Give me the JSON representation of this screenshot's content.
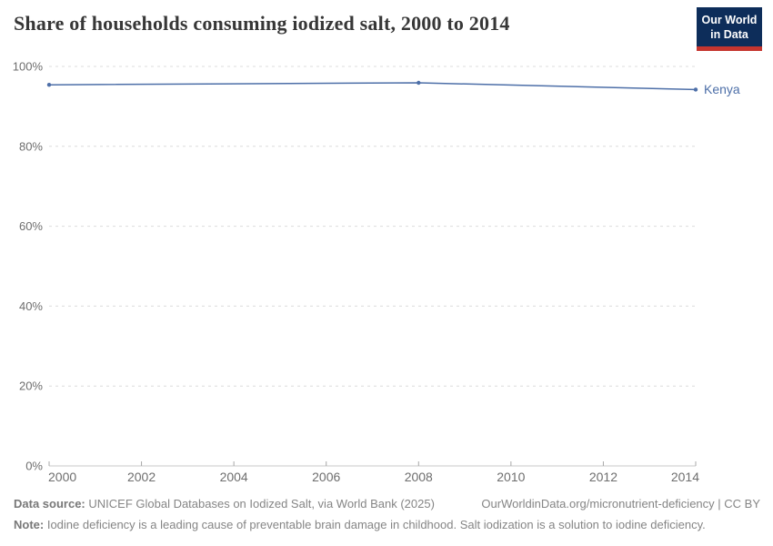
{
  "header": {
    "title": "Share of households consuming iodized salt, 2000 to 2014",
    "logo": {
      "line1": "Our World",
      "line2": "in Data",
      "bg_color": "#0d2d5a",
      "accent_color": "#c5352f"
    }
  },
  "chart_data": {
    "type": "line",
    "title": "Share of households consuming iodized salt, 2000 to 2014",
    "xlabel": "",
    "ylabel": "",
    "y_unit": "%",
    "xlim": [
      2000,
      2014
    ],
    "ylim": [
      0,
      100
    ],
    "x_ticks": [
      2000,
      2002,
      2004,
      2006,
      2008,
      2010,
      2012,
      2014
    ],
    "y_ticks": [
      0,
      20,
      40,
      60,
      80,
      100
    ],
    "grid": "horizontal-dashed",
    "legend_position": "line-end-label",
    "series": [
      {
        "name": "Kenya",
        "color": "#4d6fa8",
        "points": [
          {
            "x": 2000,
            "y": 95.4
          },
          {
            "x": 2008,
            "y": 95.9
          },
          {
            "x": 2014,
            "y": 94.2
          }
        ]
      }
    ],
    "style": {
      "gridline_color": "#dcdcdc",
      "axis_line_color": "#c8c8c8",
      "tick_color": "#a8a8a8",
      "tick_label_color": "#6e6e6e"
    }
  },
  "footer": {
    "data_source_label": "Data source:",
    "data_source_text": "UNICEF Global Databases on Iodized Salt, via World Bank (2025)",
    "link_text": "OurWorldinData.org/micronutrient-deficiency | CC BY",
    "note_label": "Note:",
    "note_text": "Iodine deficiency is a leading cause of preventable brain damage in childhood. Salt iodization is a solution to iodine deficiency."
  }
}
